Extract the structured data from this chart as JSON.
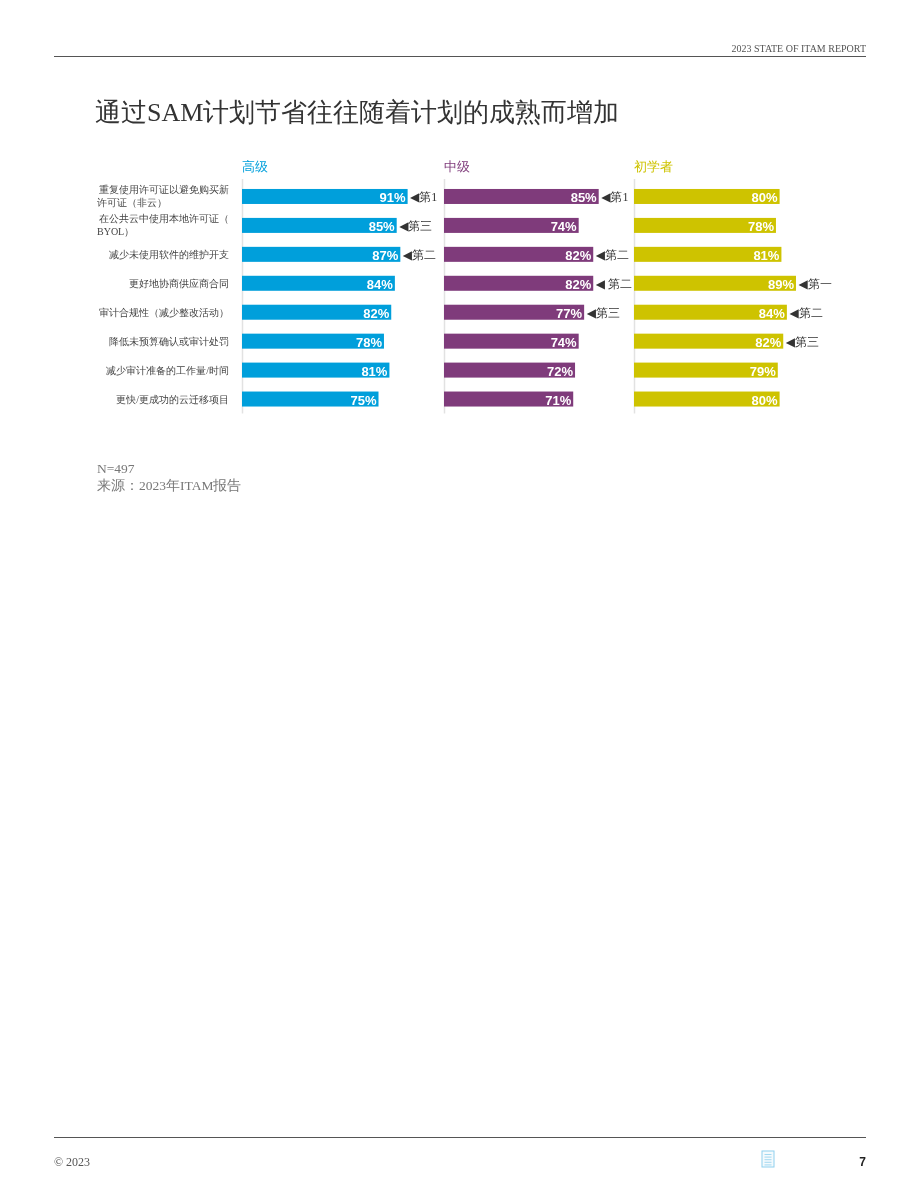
{
  "chart_data": [
    {
      "type": "bar",
      "orientation": "horizontal",
      "title": "高级",
      "color": "#009fdb",
      "tick_labels": "y",
      "categories": [
        "重复使用许可证以避免购买新许可证（非云）",
        "在公共云中使用本地许可证（BYOL）",
        "减少未使用软件的维护开支",
        "更好地协商供应商合同",
        "审计合规性（减少整改活动）",
        "降低未预算确认或审计处罚",
        "减少审计准备的工作量/时间",
        "更快/更成功的云迁移项目"
      ],
      "values": [
        91,
        85,
        87,
        84,
        82,
        78,
        81,
        75
      ],
      "value_labels": [
        "91%",
        "85%",
        "87%",
        "84%",
        "82%",
        "78%",
        "81%",
        "75%"
      ],
      "annotations": [
        "2023 STATE OF ITAM REPORT",
        "通过SAM计划节省往往随着计划的成熟而增加",
        "N=497",
        "来源：2023年ITAM报告",
        "© 2023",
        "7",
        {
          "text": "◀第1",
          "x": 91,
          "y": "重复使用许可证以避免购买新许可证（非云）"
        },
        {
          "text": "◀第三",
          "x": 85,
          "y": "在公共云中使用本地许可证（BYOL）"
        },
        {
          "text": "◀第二",
          "x": 87,
          "y": "减少未使用软件的维护开支"
        }
      ]
    },
    {
      "type": "bar",
      "orientation": "horizontal",
      "title": "中级",
      "color": "#7f3b7b",
      "tick_labels": false,
      "categories": [
        "重复使用许可证以避免购买新许可证（非云）",
        "在公共云中使用本地许可证（BYOL）",
        "减少未使用软件的维护开支",
        "更好地协商供应商合同",
        "审计合规性（减少整改活动）",
        "降低未预算确认或审计处罚",
        "减少审计准备的工作量/时间",
        "更快/更成功的云迁移项目"
      ],
      "values": [
        85,
        74,
        82,
        82,
        77,
        74,
        72,
        71
      ],
      "value_labels": [
        "85%",
        "74%",
        "82%",
        "82%",
        "77%",
        "74%",
        "72%",
        "71%"
      ],
      "annotations": [
        {
          "text": "◀第1",
          "x": 85,
          "y": "重复使用许可证以避免购买新许可证（非云）"
        },
        {
          "text": "◀第二",
          "x": 82,
          "y": "减少未使用软件的维护开支"
        },
        {
          "text": "◀ 第二",
          "x": 82,
          "y": "更好地协商供应商合同"
        },
        {
          "text": "◀第三",
          "x": 77,
          "y": "审计合规性（减少整改活动）"
        }
      ]
    },
    {
      "type": "bar",
      "orientation": "horizontal",
      "title": "初学者",
      "color": "#cec300",
      "tick_labels": false,
      "categories": [
        "重复使用许可证以避免购买新许可证（非云）",
        "在公共云中使用本地许可证（BYOL）",
        "减少未使用软件的维护开支",
        "更好地协商供应商合同",
        "审计合规性（减少整改活动）",
        "降低未预算确认或审计处罚",
        "减少审计准备的工作量/时间",
        "更快/更成功的云迁移项目"
      ],
      "values": [
        80,
        78,
        81,
        89,
        84,
        82,
        79,
        80
      ],
      "value_labels": [
        "80%",
        "78%",
        "81%",
        "89%",
        "84%",
        "82%",
        "79%",
        "80%"
      ],
      "annotations": [
        {
          "text": "◀第一",
          "x": 89,
          "y": "更好地协商供应商合同"
        },
        {
          "text": "◀第二",
          "x": 84,
          "y": "审计合规性（减少整改活动）"
        },
        {
          "text": "◀第三",
          "x": 82,
          "y": "降低未预算确认或审计处罚"
        }
      ]
    }
  ]
}
